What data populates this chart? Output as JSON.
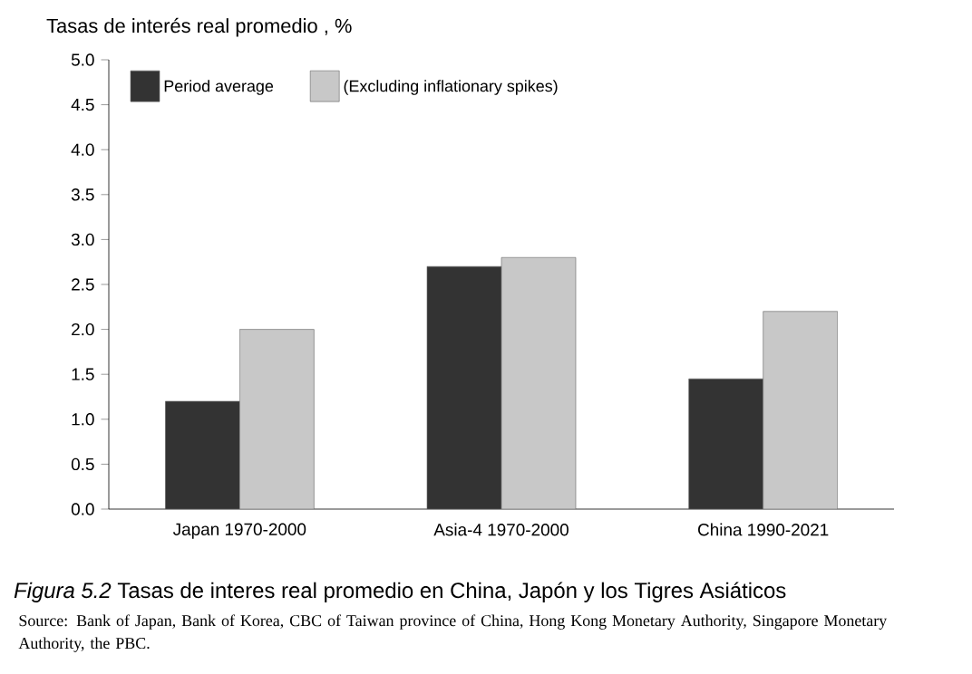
{
  "chart_data": {
    "type": "bar",
    "ylabel": "Tasas de interés real promedio , %",
    "categories": [
      "Japan 1970-2000",
      "Asia-4 1970-2000",
      "China 1990-2021"
    ],
    "series": [
      {
        "name": "Period average",
        "color": "#333333",
        "values": [
          1.2,
          2.7,
          1.45
        ]
      },
      {
        "name": "(Excluding inflationary spikes)",
        "color": "#c8c8c8",
        "values": [
          2.0,
          2.8,
          2.2
        ]
      }
    ],
    "ylim": [
      0,
      5
    ],
    "yticks": [
      {
        "value": 0,
        "label": "0.0"
      },
      {
        "value": 0.5,
        "label": "0.5"
      },
      {
        "value": 1,
        "label": "1.0"
      },
      {
        "value": 1.5,
        "label": "1.5"
      },
      {
        "value": 2,
        "label": "2.0"
      },
      {
        "value": 2.5,
        "label": "2.5"
      },
      {
        "value": 3,
        "label": "3.0"
      },
      {
        "value": 3.5,
        "label": "3.5"
      },
      {
        "value": 4,
        "label": "4.0"
      },
      {
        "value": 4.5,
        "label": "4.5"
      },
      {
        "value": 5,
        "label": "5.0"
      }
    ],
    "grid": false,
    "legend": "top left",
    "annotations": [
      "*Figura 5.2* Tasas de interes real promedio en China, Japón y los Tigres Asiáticos",
      "Source: Bank of Japan, Bank of Korea, CBC of Taiwan province of China, Hong Kong Monetary Authority, Singapore Monetary Authority, the PBC."
    ]
  }
}
